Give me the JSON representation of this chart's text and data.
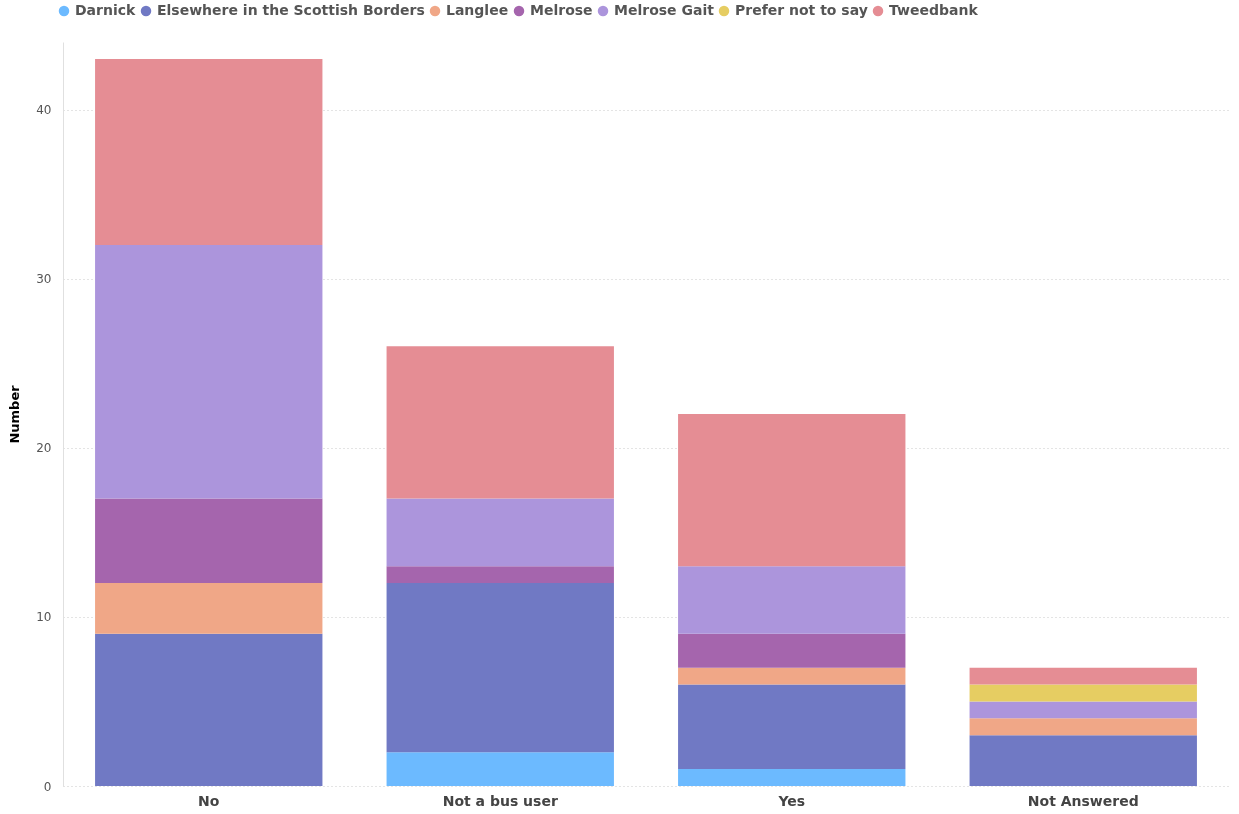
{
  "chart_data": {
    "type": "bar",
    "stacked": true,
    "ylabel": "Number",
    "categories": [
      "No",
      "Not a bus user",
      "Yes",
      "Not Answered"
    ],
    "series": [
      {
        "name": "Darnick",
        "color": "#6cbaff",
        "values": [
          0,
          2,
          1,
          0
        ]
      },
      {
        "name": "Elsewhere in the Scottish Borders",
        "color": "#7079c4",
        "values": [
          9,
          10,
          5,
          3
        ]
      },
      {
        "name": "Langlee",
        "color": "#f0a787",
        "values": [
          3,
          0,
          1,
          1
        ]
      },
      {
        "name": "Melrose",
        "color": "#a565ad",
        "values": [
          5,
          1,
          2,
          0
        ]
      },
      {
        "name": "Melrose Gait",
        "color": "#ac95dc",
        "values": [
          15,
          4,
          4,
          1
        ]
      },
      {
        "name": "Prefer not to say",
        "color": "#e6cd62",
        "values": [
          0,
          0,
          0,
          1
        ]
      },
      {
        "name": "Tweedbank",
        "color": "#e58d94",
        "values": [
          11,
          9,
          9,
          1
        ]
      }
    ],
    "ylim": [
      0,
      44
    ],
    "yticks": [
      0,
      10,
      20,
      30,
      40
    ],
    "grid": "y",
    "legend": "top left"
  }
}
